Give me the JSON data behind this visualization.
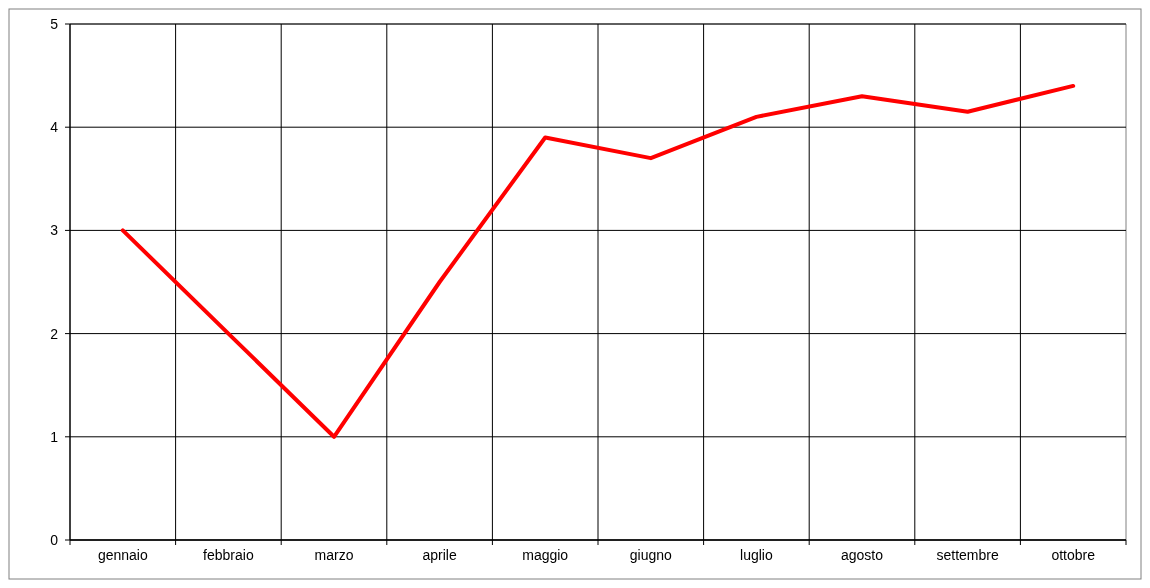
{
  "chart_data": {
    "type": "line",
    "categories": [
      "gennaio",
      "febbraio",
      "marzo",
      "aprile",
      "maggio",
      "giugno",
      "luglio",
      "agosto",
      "settembre",
      "ottobre"
    ],
    "series": [
      {
        "color": "#ff0000",
        "values": [
          3,
          2,
          1,
          2.5,
          3.9,
          3.7,
          4.1,
          4.3,
          4.15,
          4.4
        ]
      }
    ],
    "ylim": [
      0,
      5
    ],
    "yticks": [
      0,
      1,
      2,
      3,
      4,
      5
    ],
    "grid": true,
    "marker": "none",
    "line_style": "solid"
  }
}
